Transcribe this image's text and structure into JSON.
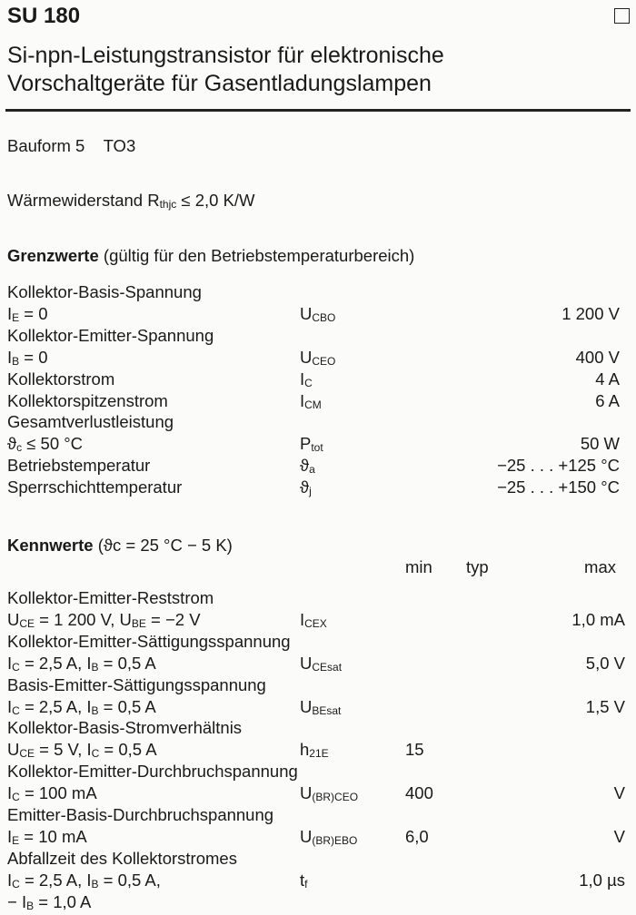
{
  "header": {
    "type": "SU 180",
    "title_line1": "Si-npn-Leistungstransistor für elektronische",
    "title_line2": "Vorschaltgeräte für Gasentladungslampen"
  },
  "bauform": {
    "label": "Bauform 5",
    "value": "TO3"
  },
  "waerme": {
    "label": "Wärmewiderstand",
    "sym": "R",
    "sub": "thjc",
    "value": "≤ 2,0 K/W"
  },
  "grenzwerte": {
    "heading": "Grenzwerte",
    "heading_note": "(gültig für den Betriebstemperaturbereich)",
    "rows": [
      {
        "lab": [
          [
            "Kollektor-Basis-Spannung"
          ]
        ]
      },
      {
        "lab": [
          [
            "I"
          ],
          [
            "E",
            "s"
          ],
          [
            " = 0"
          ]
        ],
        "sym": [
          [
            "U"
          ],
          [
            "CBO",
            "s"
          ]
        ],
        "max": "1 200 V"
      },
      {
        "lab": [
          [
            "Kollektor-Emitter-Spannung"
          ]
        ]
      },
      {
        "lab": [
          [
            "I"
          ],
          [
            "B",
            "s"
          ],
          [
            " = 0"
          ]
        ],
        "sym": [
          [
            "U"
          ],
          [
            "CEO",
            "s"
          ]
        ],
        "max": "400 V"
      },
      {
        "lab": [
          [
            "Kollektorstrom"
          ]
        ],
        "sym": [
          [
            "I"
          ],
          [
            "C",
            "s"
          ]
        ],
        "max": "4 A"
      },
      {
        "lab": [
          [
            "Kollektorspitzenstrom"
          ]
        ],
        "sym": [
          [
            "I"
          ],
          [
            "CM",
            "s"
          ]
        ],
        "max": "6 A"
      },
      {
        "lab": [
          [
            "Gesamtverlustleistung"
          ]
        ]
      },
      {
        "lab": [
          [
            "ϑ"
          ],
          [
            "c",
            "s"
          ],
          [
            "  ≤ 50 °C"
          ]
        ],
        "sym": [
          [
            "P"
          ],
          [
            "tot",
            "s"
          ]
        ],
        "max": "50 W"
      },
      {
        "lab": [
          [
            "Betriebstemperatur"
          ]
        ],
        "sym": [
          [
            "ϑ"
          ],
          [
            "a",
            "s"
          ]
        ],
        "max": "−25 . . . +125 °C"
      },
      {
        "lab": [
          [
            "Sperrschichttemperatur"
          ]
        ],
        "sym": [
          [
            "ϑ"
          ],
          [
            "j",
            "s"
          ]
        ],
        "max": "−25 . . . +150 °C"
      }
    ]
  },
  "kennwerte": {
    "heading": "Kennwerte",
    "heading_note": "(ϑc = 25 °C − 5 K)",
    "col_min": "min",
    "col_typ": "typ",
    "col_max": "max",
    "rows": [
      {
        "lab": [
          [
            "Kollektor-Emitter-Reststrom"
          ]
        ]
      },
      {
        "lab": [
          [
            "U"
          ],
          [
            "CE",
            "s"
          ],
          [
            " = 1 200 V, U"
          ],
          [
            "BE",
            "s"
          ],
          [
            " = −2 V"
          ]
        ],
        "sym": [
          [
            "I"
          ],
          [
            "CEX",
            "s"
          ]
        ],
        "max": "1,0 mA"
      },
      {
        "lab": [
          [
            "Kollektor-Emitter-Sättigungsspannung"
          ]
        ]
      },
      {
        "lab": [
          [
            "I"
          ],
          [
            "C",
            "s"
          ],
          [
            " = 2,5 A, I"
          ],
          [
            "B",
            "s"
          ],
          [
            " = 0,5 A"
          ]
        ],
        "sym": [
          [
            "U"
          ],
          [
            "CEsat",
            "s"
          ]
        ],
        "max": "5,0 V"
      },
      {
        "lab": [
          [
            "Basis-Emitter-Sättigungsspannung"
          ]
        ]
      },
      {
        "lab": [
          [
            "I"
          ],
          [
            "C",
            "s"
          ],
          [
            " = 2,5 A, I"
          ],
          [
            "B",
            "s"
          ],
          [
            " = 0,5 A"
          ]
        ],
        "sym": [
          [
            "U"
          ],
          [
            "BEsat",
            "s"
          ]
        ],
        "max": "1,5 V"
      },
      {
        "lab": [
          [
            "Kollektor-Basis-Stromverhältnis"
          ]
        ]
      },
      {
        "lab": [
          [
            "U"
          ],
          [
            "CE",
            "s"
          ],
          [
            " = 5 V, I"
          ],
          [
            "C",
            "s"
          ],
          [
            " = 0,5 A"
          ]
        ],
        "sym": [
          [
            "h"
          ],
          [
            "21E",
            "s"
          ]
        ],
        "min": "15"
      },
      {
        "lab": [
          [
            "Kollektor-Emitter-Durchbruchspannung"
          ]
        ]
      },
      {
        "lab": [
          [
            "I"
          ],
          [
            "C",
            "s"
          ],
          [
            " = 100 mA"
          ]
        ],
        "sym": [
          [
            "U"
          ],
          [
            "(BR)CEO",
            "s"
          ]
        ],
        "min": "400",
        "max": "V"
      },
      {
        "lab": [
          [
            "Emitter-Basis-Durchbruchspannung"
          ]
        ]
      },
      {
        "lab": [
          [
            "I"
          ],
          [
            "E",
            "s"
          ],
          [
            " = 10 mA"
          ]
        ],
        "sym": [
          [
            "U"
          ],
          [
            "(BR)EBO",
            "s"
          ]
        ],
        "min": "6,0",
        "max": "V"
      },
      {
        "lab": [
          [
            "Abfallzeit des Kollektorstromes"
          ]
        ]
      },
      {
        "lab": [
          [
            "I"
          ],
          [
            "C",
            "s"
          ],
          [
            " = 2,5 A, I"
          ],
          [
            "B",
            "s"
          ],
          [
            " = 0,5 A,"
          ]
        ],
        "sym": [
          [
            "t"
          ],
          [
            "f",
            "s"
          ]
        ],
        "max": "1,0 µs"
      },
      {
        "lab": [
          [
            "− I"
          ],
          [
            "B",
            "s"
          ],
          [
            " = 1,0 A"
          ]
        ]
      }
    ]
  }
}
